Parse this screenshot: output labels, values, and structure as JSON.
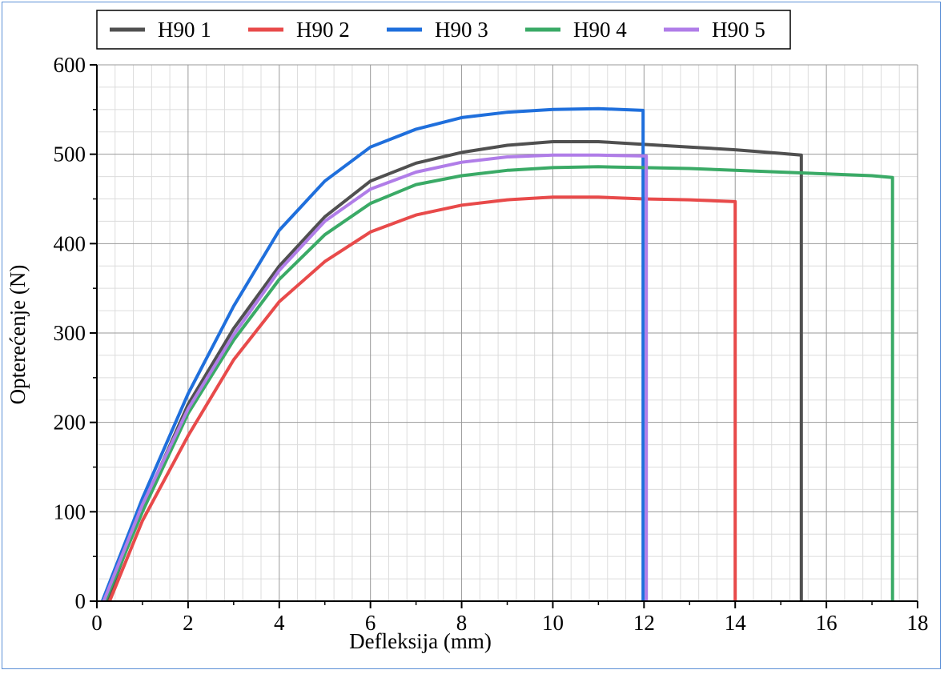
{
  "chart_data": {
    "type": "line",
    "title": "",
    "xlabel": "Defleksija (mm)",
    "ylabel": "Opterećenje (N)",
    "xlim": [
      0,
      18
    ],
    "ylim": [
      0,
      600
    ],
    "xticks": [
      0,
      2,
      4,
      6,
      8,
      10,
      12,
      14,
      16,
      18
    ],
    "yticks": [
      0,
      100,
      200,
      300,
      400,
      500,
      600
    ],
    "grid": true,
    "legend_position": "top",
    "series": [
      {
        "name": "H90 1",
        "color": "#505050",
        "x": [
          0.22,
          1,
          2,
          3,
          4,
          5,
          6,
          7,
          8,
          9,
          10,
          11,
          12,
          13,
          14,
          15,
          15.45,
          15.45
        ],
        "y": [
          0,
          105,
          220,
          305,
          375,
          430,
          470,
          490,
          502,
          510,
          514,
          514,
          511,
          508,
          505,
          501,
          499,
          0
        ]
      },
      {
        "name": "H90 2",
        "color": "#e84a4a",
        "x": [
          0.28,
          1,
          2,
          3,
          4,
          5,
          6,
          7,
          8,
          9,
          10,
          11,
          12,
          13,
          14,
          14.0
        ],
        "y": [
          0,
          90,
          185,
          270,
          335,
          380,
          413,
          432,
          443,
          449,
          452,
          452,
          450,
          449,
          447,
          0
        ]
      },
      {
        "name": "H90 3",
        "color": "#1f6fdc",
        "x": [
          0.12,
          1,
          2,
          3,
          4,
          5,
          6,
          7,
          8,
          9,
          10,
          11,
          11.98,
          11.98
        ],
        "y": [
          0,
          115,
          232,
          330,
          415,
          470,
          508,
          528,
          541,
          547,
          550,
          551,
          549,
          0
        ]
      },
      {
        "name": "H90 4",
        "color": "#3aaa66",
        "x": [
          0.18,
          1,
          2,
          3,
          4,
          5,
          6,
          7,
          8,
          9,
          10,
          11,
          12,
          13,
          14,
          15,
          16,
          17,
          17.45,
          17.45
        ],
        "y": [
          0,
          100,
          210,
          292,
          360,
          410,
          445,
          466,
          476,
          482,
          485,
          486,
          485,
          484,
          482,
          480,
          478,
          476,
          474,
          0
        ]
      },
      {
        "name": "H90 5",
        "color": "#b07de8",
        "x": [
          0.15,
          1,
          2,
          3,
          4,
          5,
          6,
          7,
          8,
          9,
          10,
          11,
          12.05,
          12.05
        ],
        "y": [
          0,
          108,
          215,
          298,
          370,
          425,
          461,
          480,
          491,
          497,
          499,
          499,
          498,
          0
        ]
      }
    ]
  }
}
